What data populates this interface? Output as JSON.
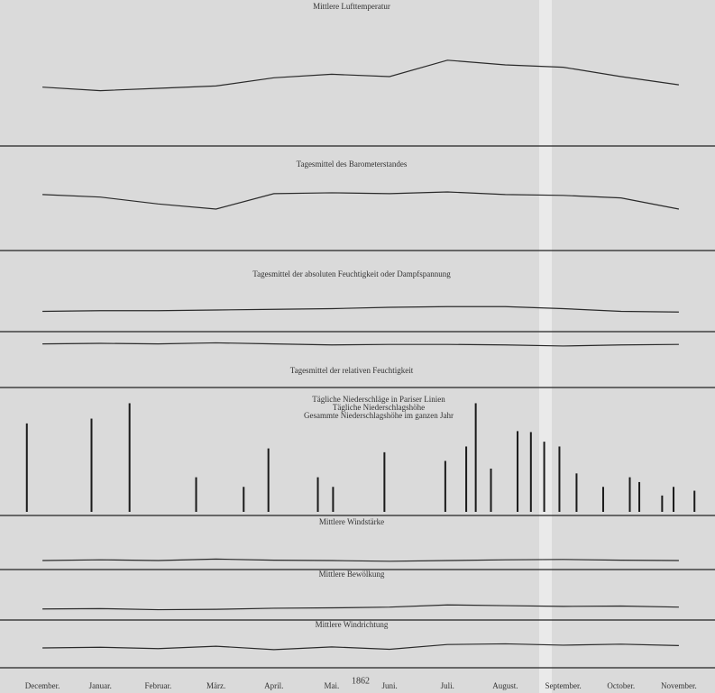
{
  "axis": {
    "months": [
      "December.",
      "Januar.",
      "Februar.",
      "März.",
      "April.",
      "Mai.",
      "Juni.",
      "Juli.",
      "August.",
      "September.",
      "October.",
      "November."
    ],
    "year": "1862"
  },
  "chart_data": [
    {
      "type": "line",
      "title": "Mittlere Lufttemperatur",
      "color": "#2a2a2a",
      "ylim": [
        0,
        10
      ],
      "values": [
        4.1,
        3.8,
        4.0,
        4.2,
        4.9,
        5.2,
        5.0,
        6.4,
        6.0,
        5.8,
        5.0,
        4.3
      ]
    },
    {
      "type": "line",
      "title": "Tagesmittel des Barometerstandes",
      "color": "#2a2a2a",
      "ylim": [
        0,
        10
      ],
      "values": [
        5.7,
        5.4,
        4.6,
        4.0,
        5.8,
        5.9,
        5.8,
        6.0,
        5.7,
        5.6,
        5.3,
        4.0
      ]
    },
    {
      "type": "line",
      "title": "Tagesmittel der absoluten Feuchtigkeit oder Dampfspannung",
      "color": "#2a2a2a",
      "ylim": [
        0,
        10
      ],
      "values": [
        2.6,
        2.7,
        2.7,
        2.8,
        2.9,
        3.0,
        3.2,
        3.3,
        3.3,
        3.0,
        2.6,
        2.5
      ]
    },
    {
      "type": "line",
      "title": "Tagesmittel der relativen Feuchtigkeit",
      "color": "#2a2a2a",
      "ylim": [
        0,
        10
      ],
      "values": [
        8.0,
        8.1,
        8.0,
        8.2,
        8.0,
        7.8,
        7.9,
        7.9,
        7.8,
        7.6,
        7.8,
        7.9
      ]
    },
    {
      "type": "bar",
      "legend": [
        "Tägliche Niederschläge in Pariser Linien",
        "Tägliche Niederschlagshöhe",
        "Gesammte Niederschlagshöhe im ganzen Jahr"
      ],
      "color": "#1a1a1a",
      "xlim": [
        0,
        365
      ],
      "ylim": [
        0,
        12
      ],
      "x": [
        7,
        41,
        61,
        96,
        121,
        134,
        160,
        168,
        195,
        227,
        238,
        243,
        251,
        265,
        272,
        279,
        287,
        296,
        310,
        324,
        329,
        341,
        347,
        358
      ],
      "values": [
        9.2,
        9.7,
        11.3,
        3.6,
        2.6,
        6.6,
        3.6,
        2.6,
        6.2,
        5.3,
        6.8,
        11.3,
        4.5,
        8.4,
        8.3,
        7.3,
        6.8,
        4.0,
        2.6,
        3.6,
        3.1,
        1.7,
        2.6,
        2.2
      ]
    },
    {
      "type": "line",
      "title": "Mittlere Windstärke",
      "color": "#2a2a2a",
      "ylim": [
        0,
        10
      ],
      "values": [
        2.0,
        2.2,
        2.0,
        2.4,
        2.1,
        2.0,
        1.8,
        2.0,
        2.2,
        2.3,
        2.1,
        2.0
      ]
    },
    {
      "type": "line",
      "title": "Mittlere Bewölkung",
      "color": "#2a2a2a",
      "ylim": [
        0,
        10
      ],
      "values": [
        2.5,
        2.6,
        2.3,
        2.4,
        2.7,
        2.8,
        3.0,
        3.6,
        3.4,
        3.2,
        3.3,
        3.0
      ]
    },
    {
      "type": "line",
      "title": "Mittlere Windrichtung",
      "color": "#2a2a2a",
      "ylim": [
        0,
        10
      ],
      "values": [
        5.0,
        5.2,
        4.8,
        5.5,
        4.5,
        5.3,
        4.6,
        6.0,
        6.2,
        5.8,
        6.1,
        5.7
      ]
    }
  ]
}
